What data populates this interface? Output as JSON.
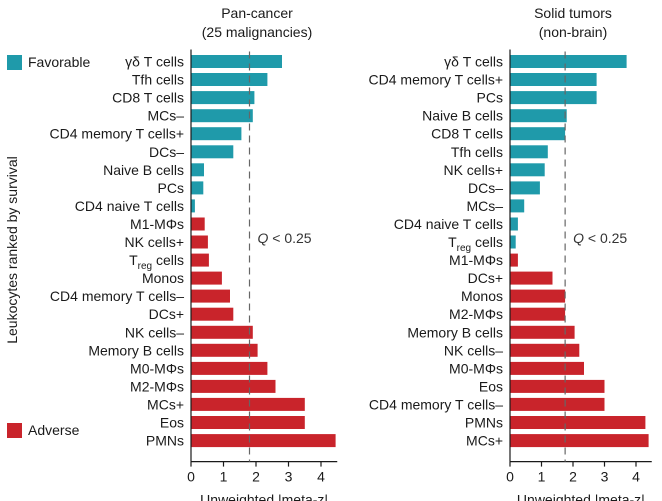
{
  "figure": {
    "ylabel": "Leukocytes ranked by survival",
    "legend": [
      {
        "label": "Favorable",
        "color": "#1f9aaa"
      },
      {
        "label": "Adverse",
        "color": "#c9242b"
      }
    ]
  },
  "chart_data": [
    {
      "type": "bar",
      "orientation": "horizontal",
      "title": "Pan-cancer",
      "subtitle": "(25 malignancies)",
      "xlabel": "Unweighted |meta-z|",
      "xlim": [
        0,
        4.5
      ],
      "xticks": [
        0,
        1,
        2,
        3,
        4
      ],
      "threshold": {
        "x": 1.8,
        "label_prefix": "Q",
        "label_rest": " < 0.25"
      },
      "categories": [
        "γδ T cells",
        "Tfh cells",
        "CD8 T cells",
        "MCs–",
        "CD4 memory T cells+",
        "DCs–",
        "Naive B cells",
        "PCs",
        "CD4 naive T cells",
        "M1-MΦs",
        "NK cells+",
        "Treg cells",
        "Monos",
        "CD4 memory T cells–",
        "DCs+",
        "NK cells–",
        "Memory B cells",
        "M0-MΦs",
        "M2-MΦs",
        "MCs+",
        "Eos",
        "PMNs"
      ],
      "values": [
        2.8,
        2.35,
        1.95,
        1.9,
        1.55,
        1.3,
        0.4,
        0.38,
        0.12,
        0.42,
        0.52,
        0.55,
        0.95,
        1.2,
        1.3,
        1.9,
        2.05,
        2.35,
        2.6,
        3.5,
        3.5,
        4.45
      ],
      "directions": [
        "favorable",
        "favorable",
        "favorable",
        "favorable",
        "favorable",
        "favorable",
        "favorable",
        "favorable",
        "favorable",
        "adverse",
        "adverse",
        "adverse",
        "adverse",
        "adverse",
        "adverse",
        "adverse",
        "adverse",
        "adverse",
        "adverse",
        "adverse",
        "adverse",
        "adverse"
      ]
    },
    {
      "type": "bar",
      "orientation": "horizontal",
      "title": "Solid tumors",
      "subtitle": "(non-brain)",
      "xlabel": "Unweighted |meta-z|",
      "xlim": [
        0,
        4.5
      ],
      "xticks": [
        0,
        1,
        2,
        3,
        4
      ],
      "threshold": {
        "x": 1.75,
        "label_prefix": "Q",
        "label_rest": " < 0.25"
      },
      "categories": [
        "γδ T cells",
        "CD4 memory T cells+",
        "PCs",
        "Naive B cells",
        "CD8 T cells",
        "Tfh cells",
        "NK cells+",
        "DCs–",
        "MCs–",
        "CD4 naive T cells",
        "Treg cells",
        "M1-MΦs",
        "DCs+",
        "Monos",
        "M2-MΦs",
        "Memory B cells",
        "NK cells–",
        "M0-MΦs",
        "Eos",
        "CD4 memory T cells–",
        "PMNs",
        "MCs+"
      ],
      "values": [
        3.7,
        2.75,
        2.75,
        1.8,
        1.75,
        1.2,
        1.1,
        0.95,
        0.45,
        0.25,
        0.18,
        0.25,
        1.35,
        1.75,
        1.75,
        2.05,
        2.2,
        2.35,
        3.0,
        3.0,
        4.3,
        4.4
      ],
      "directions": [
        "favorable",
        "favorable",
        "favorable",
        "favorable",
        "favorable",
        "favorable",
        "favorable",
        "favorable",
        "favorable",
        "favorable",
        "favorable",
        "adverse",
        "adverse",
        "adverse",
        "adverse",
        "adverse",
        "adverse",
        "adverse",
        "adverse",
        "adverse",
        "adverse",
        "adverse"
      ]
    }
  ]
}
